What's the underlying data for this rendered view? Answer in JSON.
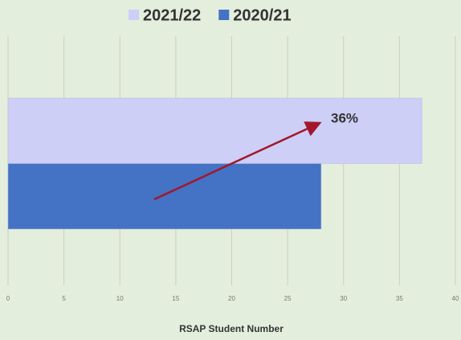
{
  "chart_data": {
    "type": "hbar",
    "categories": [
      null
    ],
    "series": [
      {
        "name": "2021/22",
        "color": "#cdcff6",
        "values": [
          37
        ]
      },
      {
        "name": "2020/21",
        "color": "#4472c4",
        "values": [
          28
        ]
      }
    ],
    "xlim": [
      0,
      40
    ],
    "xticks": [
      0,
      5,
      10,
      15,
      20,
      25,
      30,
      35,
      40
    ],
    "xlabel": "RSAP Student Number",
    "annotations": [
      {
        "text": "36%"
      }
    ],
    "grid": true,
    "legend": "top"
  }
}
